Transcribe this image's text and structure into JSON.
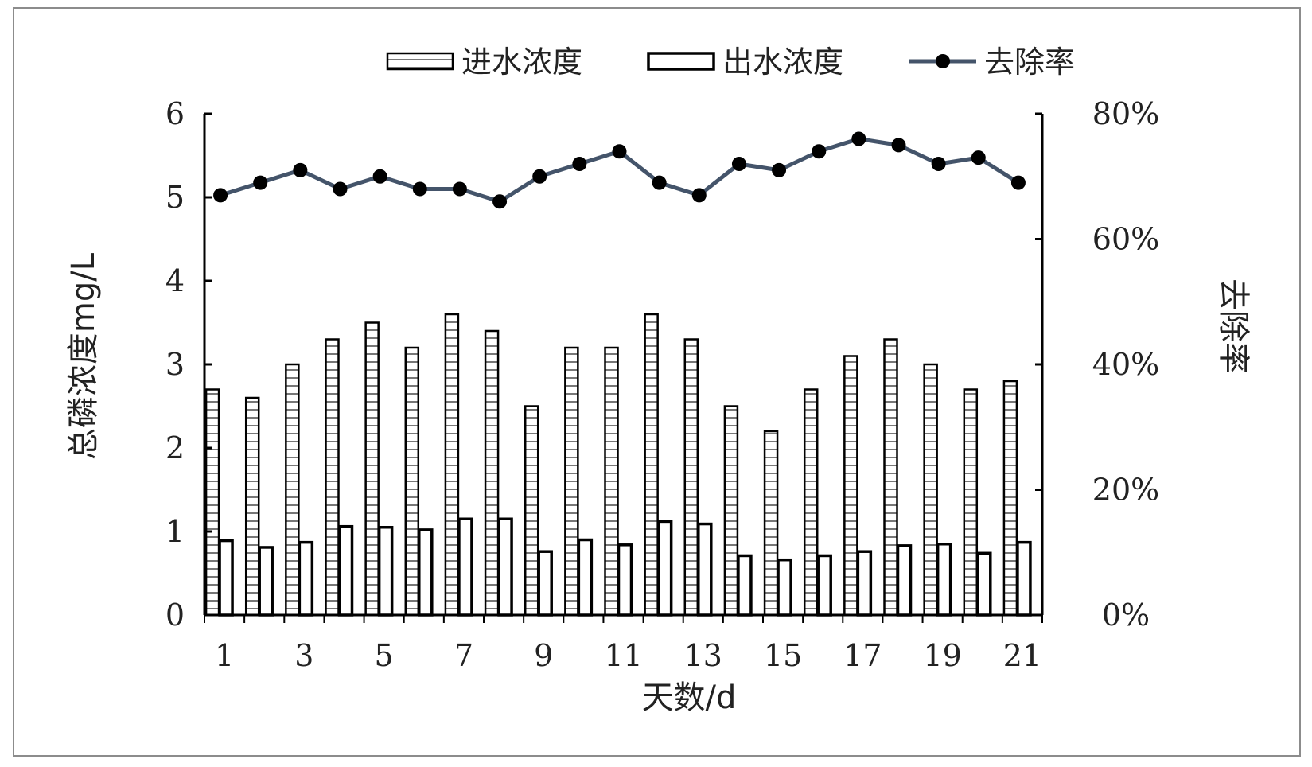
{
  "chart_data": {
    "type": "bar",
    "xlabel": "天数/d",
    "ylabel_left": "总磷浓度mg/L",
    "ylabel_right": "去除率",
    "ylim_left": [
      0,
      6
    ],
    "ylim_right": [
      0,
      80
    ],
    "yticks_left": [
      "0",
      "1",
      "2",
      "3",
      "4",
      "5",
      "6"
    ],
    "yticks_right": [
      "0%",
      "20%",
      "40%",
      "60%",
      "80%"
    ],
    "xtick_labels": [
      "1",
      "3",
      "5",
      "7",
      "9",
      "11",
      "13",
      "15",
      "17",
      "19",
      "21"
    ],
    "categories": [
      1,
      2,
      3,
      4,
      5,
      6,
      7,
      8,
      9,
      10,
      11,
      12,
      13,
      14,
      15,
      16,
      17,
      18,
      19,
      20,
      21
    ],
    "legend_position": "top",
    "series": [
      {
        "name": "进水浓度",
        "kind": "bar",
        "pattern": "horizontal-hatch",
        "axis": "left",
        "values": [
          2.7,
          2.6,
          3.0,
          3.3,
          3.5,
          3.2,
          3.6,
          3.4,
          2.5,
          3.2,
          3.2,
          3.6,
          3.3,
          2.5,
          2.2,
          2.7,
          3.1,
          3.3,
          3.0,
          2.7,
          2.8
        ]
      },
      {
        "name": "出水浓度",
        "kind": "bar",
        "pattern": "hollow",
        "axis": "left",
        "values": [
          0.89,
          0.81,
          0.87,
          1.06,
          1.05,
          1.02,
          1.15,
          1.15,
          0.76,
          0.9,
          0.84,
          1.12,
          1.09,
          0.71,
          0.66,
          0.71,
          0.76,
          0.83,
          0.85,
          0.74,
          0.87
        ]
      },
      {
        "name": "去除率",
        "kind": "line",
        "marker": "circle",
        "color": "#44546A",
        "axis": "right",
        "values": [
          67,
          69,
          71,
          68,
          70,
          68,
          68,
          66,
          70,
          72,
          74,
          69,
          67,
          72,
          71,
          74,
          76,
          75,
          72,
          73,
          69
        ]
      }
    ]
  }
}
